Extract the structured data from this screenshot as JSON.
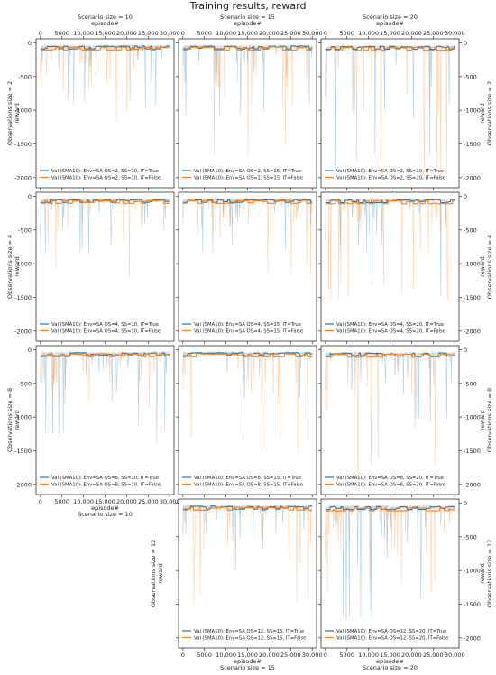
{
  "figure": {
    "title": "Training results, reward"
  },
  "colors": {
    "series_true": "#1f77b4",
    "series_false": "#ff7f0e",
    "axis": "#333333",
    "grid": "#e6e6e6"
  },
  "labels": {
    "x_axis": "episode#",
    "y_axis": "reward",
    "col_prefix": "Scenario size = ",
    "row_prefix": "Observations size = "
  },
  "scenario_sizes": [
    10,
    15,
    20
  ],
  "observation_sizes": [
    2,
    4,
    8,
    12
  ],
  "x_ticks": [
    "0",
    "5000",
    "10,000",
    "15,000",
    "20,000",
    "25,000",
    "30,000"
  ],
  "y_ticks": [
    "0",
    "-500",
    "-1000",
    "-1500",
    "-2000"
  ],
  "chart_data": {
    "type": "line",
    "layout": "grid 4 rows (observations size) x 3 columns (scenario size); panel OS=12,SS=10 absent",
    "xlabel": "episode#",
    "ylabel": "reward",
    "xlim": [
      -1000,
      31000
    ],
    "ylim": [
      -2150,
      60
    ],
    "x_tick_values": [
      0,
      5000,
      10000,
      15000,
      20000,
      25000,
      30000
    ],
    "y_tick_values": [
      0,
      -500,
      -1000,
      -1500,
      -2000
    ],
    "legend_position": "lower-left",
    "panels": [
      {
        "os": 2,
        "ss": 10,
        "series": [
          {
            "name": "Val (SMA10): Env=SA OS=2, SS=10, IT=True",
            "mean_level": -30,
            "min_dip": -1000
          },
          {
            "name": "Val (SMA10): Env=SA OS=2, SS=10, IT=False",
            "mean_level": -45,
            "min_dip": -1300
          }
        ]
      },
      {
        "os": 2,
        "ss": 15,
        "series": [
          {
            "name": "Val (SMA10): Env=SA OS=2, SS=15, IT=True",
            "mean_level": -30,
            "min_dip": -1100
          },
          {
            "name": "Val (SMA10): Env=SA OS=2, SS=15, IT=False",
            "mean_level": -45,
            "min_dip": -1700
          }
        ]
      },
      {
        "os": 2,
        "ss": 20,
        "series": [
          {
            "name": "Val (SMA10): Env=SA OS=2, SS=20, IT=True",
            "mean_level": -35,
            "min_dip": -2050
          },
          {
            "name": "Val (SMA10): Env=SA OS=2, SS=20, IT=False",
            "mean_level": -50,
            "min_dip": -2100
          }
        ]
      },
      {
        "os": 4,
        "ss": 10,
        "series": [
          {
            "name": "Val (SMA10): Env=SA OS=4, SS=10, IT=True",
            "mean_level": -30,
            "min_dip": -900
          },
          {
            "name": "Val (SMA10): Env=SA OS=4, SS=10, IT=False",
            "mean_level": -45,
            "min_dip": -1300
          }
        ]
      },
      {
        "os": 4,
        "ss": 15,
        "series": [
          {
            "name": "Val (SMA10): Env=SA OS=4, SS=15, IT=True",
            "mean_level": -30,
            "min_dip": -900
          },
          {
            "name": "Val (SMA10): Env=SA OS=4, SS=15, IT=False",
            "mean_level": -45,
            "min_dip": -1200
          }
        ]
      },
      {
        "os": 4,
        "ss": 20,
        "series": [
          {
            "name": "Val (SMA10): Env=SA OS=4, SS=20, IT=True",
            "mean_level": -35,
            "min_dip": -1500
          },
          {
            "name": "Val (SMA10): Env=SA OS=4, SS=20, IT=False",
            "mean_level": -50,
            "min_dip": -1550
          }
        ]
      },
      {
        "os": 8,
        "ss": 10,
        "series": [
          {
            "name": "Val (SMA10): Env=SA OS=8, SS=10, IT=True",
            "mean_level": -30,
            "min_dip": -1400
          },
          {
            "name": "Val (SMA10): Env=SA OS=8, SS=10, IT=False",
            "mean_level": -45,
            "min_dip": -900
          }
        ]
      },
      {
        "os": 8,
        "ss": 15,
        "series": [
          {
            "name": "Val (SMA10): Env=SA OS=8, SS=15, IT=True",
            "mean_level": -30,
            "min_dip": -900
          },
          {
            "name": "Val (SMA10): Env=SA OS=8, SS=15, IT=False",
            "mean_level": -45,
            "min_dip": -1550
          }
        ]
      },
      {
        "os": 8,
        "ss": 20,
        "series": [
          {
            "name": "Val (SMA10): Env=SA OS=8, SS=20, IT=True",
            "mean_level": -35,
            "min_dip": -1200
          },
          {
            "name": "Val (SMA10): Env=SA OS=8, SS=20, IT=False",
            "mean_level": -50,
            "min_dip": -1900
          }
        ]
      },
      {
        "os": 12,
        "ss": 15,
        "series": [
          {
            "name": "Val (SMA10): Env=SA OS=12, SS=15, IT=True",
            "mean_level": -30,
            "min_dip": -1200
          },
          {
            "name": "Val (SMA10): Env=SA OS=12, SS=15, IT=False",
            "mean_level": -45,
            "min_dip": -1600
          }
        ]
      },
      {
        "os": 12,
        "ss": 20,
        "series": [
          {
            "name": "Val (SMA10): Env=SA OS=12, SS=20, IT=True",
            "mean_level": -35,
            "min_dip": -1750
          },
          {
            "name": "Val (SMA10): Env=SA OS=12, SS=20, IT=False",
            "mean_level": -55,
            "min_dip": -1400
          }
        ]
      }
    ]
  }
}
